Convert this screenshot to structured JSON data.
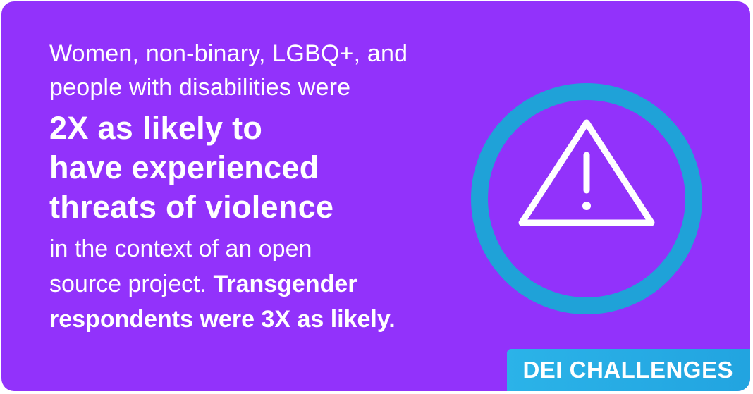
{
  "intro": {
    "line1": "Women, non-binary, LGBQ+, and",
    "line2": "people with disabilities were"
  },
  "headline": {
    "line1": "2X as likely to",
    "line2": "have experienced",
    "line3": "threats of violence"
  },
  "outro": {
    "line1": "in the context of an open",
    "line2_regular": "source project. ",
    "line2_bold": "Transgender",
    "line3_bold": "respondents were 3X as likely."
  },
  "badge": {
    "label": "DEI CHALLENGES"
  },
  "icon": {
    "name": "warning-icon"
  },
  "colors": {
    "background": "#9232fb",
    "ring": "#1fa2d8",
    "badge": "#2bb3e8",
    "text": "#ffffff"
  }
}
